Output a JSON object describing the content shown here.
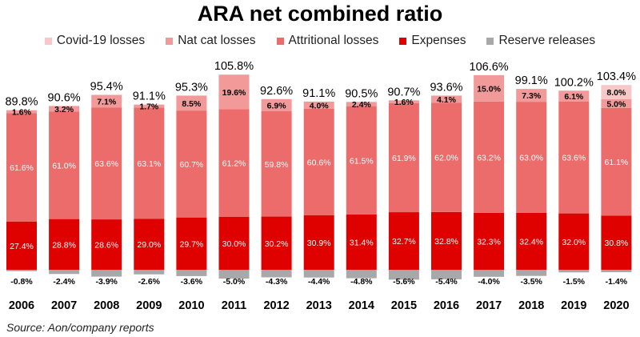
{
  "chart_data": {
    "type": "bar",
    "stacked": true,
    "title": "ARA net combined ratio",
    "categories": [
      "2006",
      "2007",
      "2008",
      "2009",
      "2010",
      "2011",
      "2012",
      "2013",
      "2014",
      "2015",
      "2016",
      "2017",
      "2018",
      "2019",
      "2020"
    ],
    "totals": [
      "89.8%",
      "90.6%",
      "95.4%",
      "91.1%",
      "95.3%",
      "105.8%",
      "92.6%",
      "91.1%",
      "90.5%",
      "90.7%",
      "93.6%",
      "106.6%",
      "99.1%",
      "100.2%",
      "103.4%"
    ],
    "series": [
      {
        "name": "Covid-19 losses",
        "color": "#f8c7c7",
        "values": [
          0,
          0,
          0,
          0,
          0,
          0,
          0,
          0,
          0,
          0,
          0,
          0,
          0,
          0,
          8.0
        ]
      },
      {
        "name": "Nat cat losses",
        "color": "#f29a9a",
        "values": [
          1.6,
          3.2,
          7.1,
          1.7,
          8.5,
          19.6,
          6.9,
          4.0,
          2.4,
          1.6,
          4.1,
          15.0,
          7.3,
          6.1,
          5.0
        ]
      },
      {
        "name": "Attritional losses",
        "color": "#ec6b6b",
        "values": [
          61.6,
          61.0,
          63.6,
          63.1,
          60.7,
          61.2,
          59.8,
          60.6,
          61.5,
          61.9,
          62.0,
          63.2,
          63.0,
          63.6,
          61.1
        ]
      },
      {
        "name": "Expenses",
        "color": "#df0000",
        "values": [
          27.4,
          28.8,
          28.6,
          29.0,
          29.7,
          30.0,
          30.2,
          30.9,
          31.4,
          32.7,
          32.8,
          32.3,
          32.4,
          32.0,
          30.8
        ]
      },
      {
        "name": "Reserve releases",
        "color": "#a8a8a8",
        "values": [
          -0.8,
          -2.4,
          -3.9,
          -2.6,
          -3.6,
          -5.0,
          -4.3,
          -4.4,
          -4.8,
          -5.6,
          -5.4,
          -4.0,
          -3.5,
          -1.5,
          -1.4
        ]
      }
    ],
    "legend_position": "top",
    "grid": false,
    "ylim": [
      -6,
      110
    ]
  },
  "source": "Source: Aon/company reports"
}
